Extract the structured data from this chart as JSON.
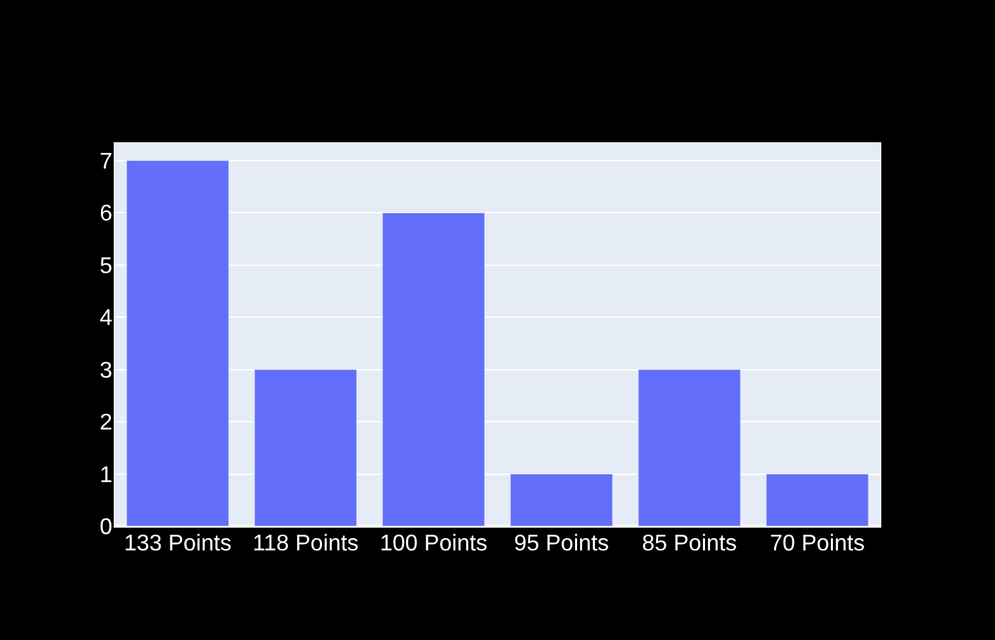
{
  "chart_data": {
    "type": "bar",
    "categories": [
      "133 Points",
      "118 Points",
      "100 Points",
      "95 Points",
      "85 Points",
      "70 Points"
    ],
    "values": [
      7,
      3,
      6,
      1,
      3,
      1
    ],
    "color": "#636efa",
    "ylim": [
      0,
      7.35
    ],
    "yticks": [
      0,
      1,
      2,
      3,
      4,
      5,
      6,
      7
    ],
    "grid": "y"
  }
}
